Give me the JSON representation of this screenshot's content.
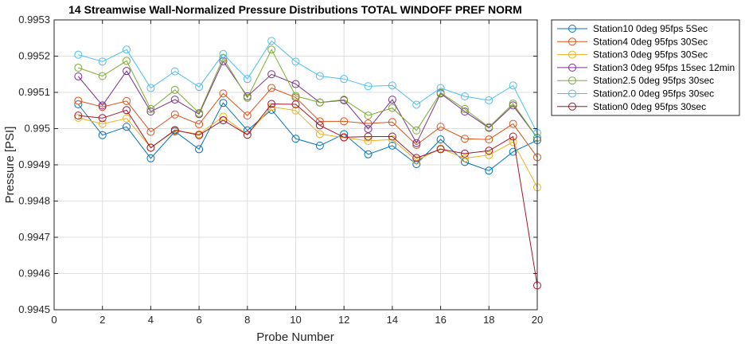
{
  "chart_data": {
    "type": "line",
    "title": "14 Streamwise Wall-Normalized Pressure Distributions TOTAL WINDOFF PREF NORM",
    "xlabel": "Probe Number",
    "ylabel": "Pressure [PSI]",
    "xlim": [
      0,
      20
    ],
    "ylim": [
      0.9945,
      0.9953
    ],
    "xticks": [
      0,
      2,
      4,
      6,
      8,
      10,
      12,
      14,
      16,
      18,
      20
    ],
    "xtick_labels": [
      "0",
      "2",
      "4",
      "6",
      "8",
      "10",
      "12",
      "14",
      "16",
      "18",
      "20"
    ],
    "yticks": [
      0.9945,
      0.9946,
      0.9947,
      0.9948,
      0.9949,
      0.995,
      0.9951,
      0.9952,
      0.9953
    ],
    "ytick_labels": [
      "0.9945",
      "0.9946",
      "0.9947",
      "0.9948",
      "0.9949",
      "0.995",
      "0.9951",
      "0.9952",
      "0.9953"
    ],
    "grid": true,
    "legend_position": "outside-top-right",
    "x": [
      1,
      2,
      3,
      4,
      5,
      6,
      7,
      8,
      9,
      10,
      11,
      12,
      13,
      14,
      15,
      16,
      17,
      18,
      19,
      20
    ],
    "series": [
      {
        "name": "Station10 0deg 95fps 5Sec",
        "color": "#0072bd",
        "values": [
          0.995067,
          0.994982,
          0.995005,
          0.994918,
          0.994992,
          0.994943,
          0.995071,
          0.994995,
          0.995052,
          0.994972,
          0.994953,
          0.994985,
          0.994929,
          0.994953,
          0.994902,
          0.99497,
          0.994908,
          0.994884,
          0.994936,
          0.994968
        ]
      },
      {
        "name": "Station4 0deg 95fps 30Sec",
        "color": "#d95319",
        "values": [
          0.995077,
          0.99506,
          0.995076,
          0.994991,
          0.995039,
          0.995012,
          0.995097,
          0.995036,
          0.995112,
          0.995086,
          0.99502,
          0.99502,
          0.995014,
          0.995018,
          0.994955,
          0.995005,
          0.994972,
          0.99497,
          0.995013,
          0.994921
        ]
      },
      {
        "name": "Station3 0deg 95fps 30Sec",
        "color": "#edb120",
        "values": [
          0.99503,
          0.995013,
          0.995028,
          0.994948,
          0.994994,
          0.994985,
          0.995033,
          0.994983,
          0.99506,
          0.99505,
          0.994985,
          0.994975,
          0.994966,
          0.99497,
          0.994912,
          0.994945,
          0.994918,
          0.994927,
          0.994963,
          0.994838
        ]
      },
      {
        "name": "Station3 0deg 95fps 15sec 12min",
        "color": "#7e2f8e",
        "values": [
          0.995144,
          0.995064,
          0.995159,
          0.995047,
          0.99508,
          0.99504,
          0.995186,
          0.995089,
          0.99515,
          0.995123,
          0.995072,
          0.995078,
          0.994999,
          0.99508,
          0.99496,
          0.995097,
          0.995047,
          0.995002,
          0.995064,
          0.994975
        ]
      },
      {
        "name": "Station2.5 0deg 95fps 30sec",
        "color": "#77ac30",
        "values": [
          0.995168,
          0.995145,
          0.995187,
          0.995054,
          0.995107,
          0.995043,
          0.995195,
          0.995085,
          0.995218,
          0.99509,
          0.995072,
          0.99508,
          0.995036,
          0.995057,
          0.994995,
          0.995099,
          0.995054,
          0.995004,
          0.995069,
          0.994975
        ]
      },
      {
        "name": "Station2.0 0deg 95fps 30sec",
        "color": "#4dbeee",
        "values": [
          0.995204,
          0.995185,
          0.995218,
          0.995112,
          0.995158,
          0.995115,
          0.995206,
          0.995137,
          0.995242,
          0.995185,
          0.995145,
          0.995137,
          0.995117,
          0.995119,
          0.995066,
          0.995112,
          0.995089,
          0.995078,
          0.995119,
          0.994988
        ]
      },
      {
        "name": "Station0 0deg 95fps 30sec",
        "color": "#a2142f",
        "values": [
          0.995036,
          0.995029,
          0.995051,
          0.994947,
          0.994996,
          0.994982,
          0.995023,
          0.994983,
          0.995068,
          0.995067,
          0.995009,
          0.994976,
          0.994978,
          0.994978,
          0.994919,
          0.994943,
          0.994931,
          0.994939,
          0.994978,
          0.994567
        ]
      }
    ]
  }
}
